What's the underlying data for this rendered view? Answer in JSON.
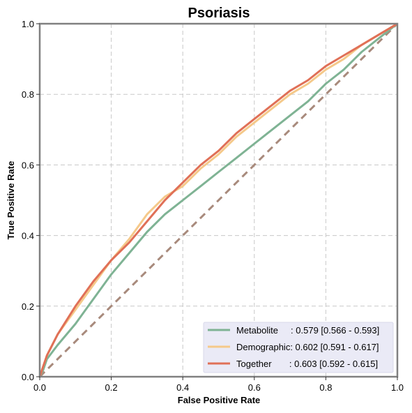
{
  "chart_data": {
    "type": "line",
    "title": "Psoriasis",
    "xlabel": "False Positive Rate",
    "ylabel": "True Positive Rate",
    "xlim": [
      0,
      1
    ],
    "ylim": [
      0,
      1
    ],
    "xticks": [
      "0.0",
      "0.2",
      "0.4",
      "0.6",
      "0.8",
      "1.0"
    ],
    "yticks": [
      "0.0",
      "0.2",
      "0.4",
      "0.6",
      "0.8",
      "1.0"
    ],
    "grid": true,
    "legend_position": "lower-right",
    "series": [
      {
        "name": "Metabolite",
        "legend_label": "Metabolite     : 0.579 [0.566 - 0.593]",
        "color": "#7fb394",
        "x": [
          0,
          0.01,
          0.02,
          0.05,
          0.1,
          0.15,
          0.2,
          0.25,
          0.3,
          0.35,
          0.4,
          0.45,
          0.5,
          0.55,
          0.6,
          0.65,
          0.7,
          0.75,
          0.8,
          0.85,
          0.9,
          0.95,
          1.0
        ],
        "y": [
          0,
          0.02,
          0.05,
          0.09,
          0.15,
          0.22,
          0.29,
          0.35,
          0.41,
          0.46,
          0.5,
          0.54,
          0.58,
          0.62,
          0.66,
          0.7,
          0.74,
          0.78,
          0.83,
          0.87,
          0.92,
          0.96,
          1.0
        ]
      },
      {
        "name": "Demographic",
        "legend_label": "Demographic: 0.602 [0.591 - 0.617]",
        "color": "#f5c98a",
        "x": [
          0,
          0.01,
          0.02,
          0.05,
          0.1,
          0.15,
          0.2,
          0.25,
          0.3,
          0.35,
          0.4,
          0.45,
          0.5,
          0.55,
          0.6,
          0.65,
          0.7,
          0.75,
          0.8,
          0.85,
          0.9,
          0.95,
          1.0
        ],
        "y": [
          0,
          0.03,
          0.06,
          0.12,
          0.19,
          0.26,
          0.33,
          0.39,
          0.46,
          0.51,
          0.54,
          0.59,
          0.63,
          0.68,
          0.72,
          0.76,
          0.8,
          0.83,
          0.87,
          0.9,
          0.94,
          0.97,
          1.0
        ]
      },
      {
        "name": "Together",
        "legend_label": "Together       : 0.603 [0.592 - 0.615]",
        "color": "#e07057",
        "x": [
          0,
          0.01,
          0.02,
          0.05,
          0.1,
          0.15,
          0.2,
          0.25,
          0.3,
          0.35,
          0.4,
          0.45,
          0.5,
          0.55,
          0.6,
          0.65,
          0.7,
          0.75,
          0.8,
          0.85,
          0.9,
          0.95,
          1.0
        ],
        "y": [
          0,
          0.03,
          0.06,
          0.12,
          0.2,
          0.27,
          0.33,
          0.38,
          0.44,
          0.5,
          0.55,
          0.6,
          0.64,
          0.69,
          0.73,
          0.77,
          0.81,
          0.84,
          0.88,
          0.91,
          0.94,
          0.97,
          1.0
        ]
      }
    ],
    "chance_line": {
      "x": [
        0,
        1
      ],
      "y": [
        0,
        1
      ],
      "color": "#a88a7c"
    }
  }
}
